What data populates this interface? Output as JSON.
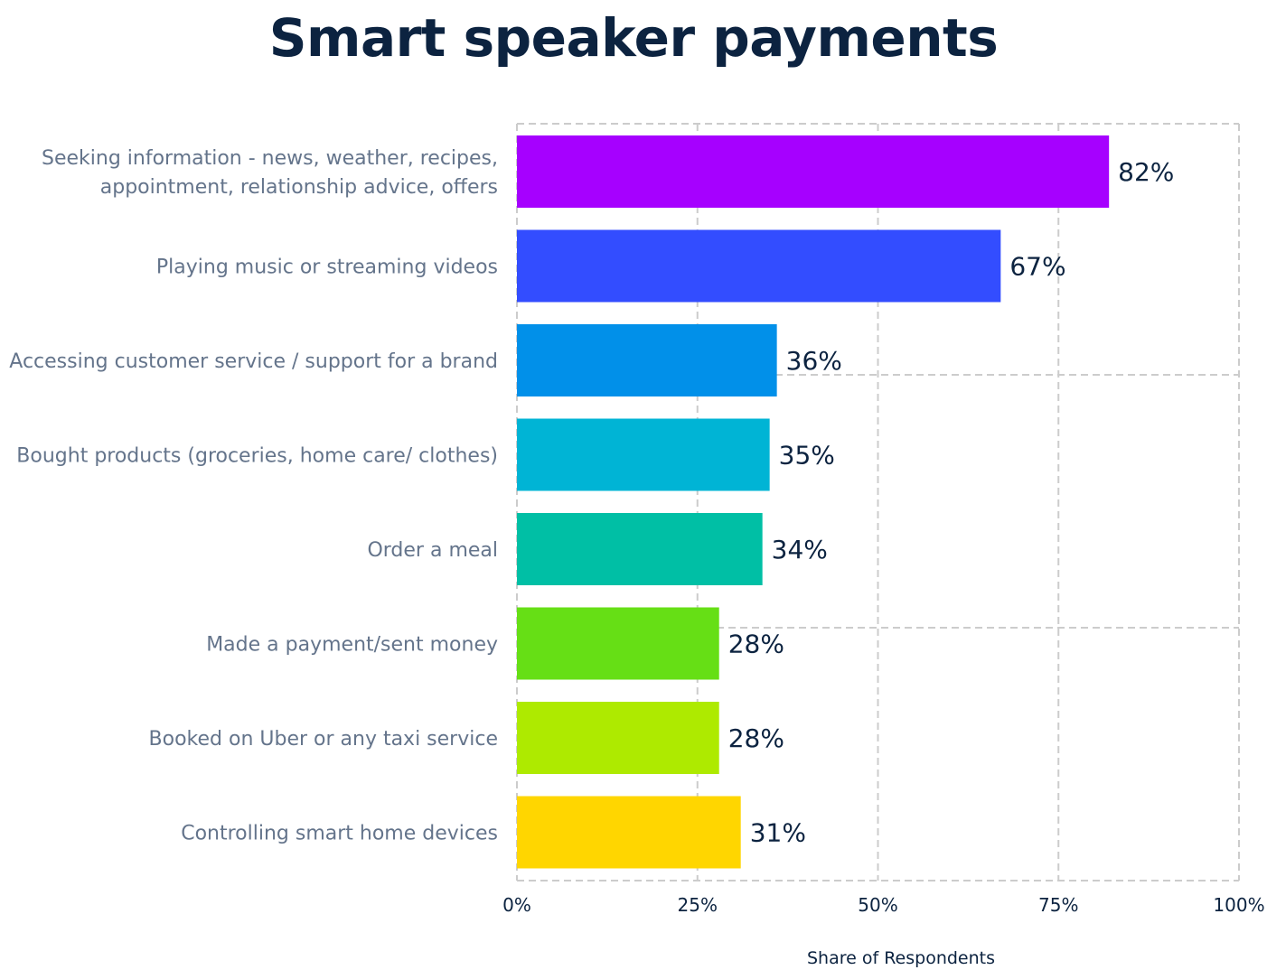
{
  "chart_data": {
    "type": "bar",
    "orientation": "horizontal",
    "title": "Smart speaker payments",
    "xlabel": "Share of Respondents",
    "ylabel": "",
    "xlim": [
      0,
      100
    ],
    "x_ticks": [
      "0%",
      "25%",
      "50%",
      "75%",
      "100%"
    ],
    "grid": true,
    "legend": "none",
    "categories": [
      [
        "Seeking information - news, weather, recipes,",
        "appointment, relationship advice, offers"
      ],
      [
        "Playing music or streaming videos"
      ],
      [
        "Accessing customer service / support for a brand"
      ],
      [
        "Bought products (groceries, home care/ clothes)"
      ],
      [
        "Order a meal"
      ],
      [
        "Made a payment/sent money"
      ],
      [
        "Booked on Uber or any taxi service"
      ],
      [
        "Controlling smart home devices"
      ]
    ],
    "values": [
      82,
      67,
      36,
      35,
      34,
      28,
      28,
      31
    ],
    "value_labels": [
      "82%",
      "67%",
      "36%",
      "35%",
      "34%",
      "28%",
      "28%",
      "31%"
    ],
    "colors": [
      "#a600ff",
      "#334dff",
      "#0190e9",
      "#00b4d5",
      "#00bfa5",
      "#66df15",
      "#aeea00",
      "#ffd600"
    ]
  }
}
